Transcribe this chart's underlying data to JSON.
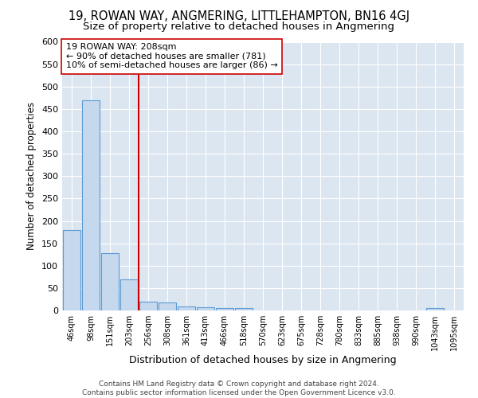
{
  "title": "19, ROWAN WAY, ANGMERING, LITTLEHAMPTON, BN16 4GJ",
  "subtitle": "Size of property relative to detached houses in Angmering",
  "xlabel": "Distribution of detached houses by size in Angmering",
  "ylabel": "Number of detached properties",
  "bar_categories": [
    "46sqm",
    "98sqm",
    "151sqm",
    "203sqm",
    "256sqm",
    "308sqm",
    "361sqm",
    "413sqm",
    "466sqm",
    "518sqm",
    "570sqm",
    "623sqm",
    "675sqm",
    "728sqm",
    "780sqm",
    "833sqm",
    "885sqm",
    "938sqm",
    "990sqm",
    "1043sqm",
    "1095sqm"
  ],
  "bar_values": [
    180,
    470,
    128,
    70,
    20,
    17,
    9,
    7,
    5,
    5,
    0,
    0,
    0,
    0,
    0,
    0,
    0,
    0,
    0,
    5,
    0
  ],
  "bar_color": "#c5d8ed",
  "bar_edge_color": "#5b9bd5",
  "vline_x": 3.5,
  "vline_color": "#cc0000",
  "annotation_text": "19 ROWAN WAY: 208sqm\n← 90% of detached houses are smaller (781)\n10% of semi-detached houses are larger (86) →",
  "annotation_box_color": "#ffffff",
  "annotation_box_edge": "#cc0000",
  "ylim": [
    0,
    600
  ],
  "yticks": [
    0,
    50,
    100,
    150,
    200,
    250,
    300,
    350,
    400,
    450,
    500,
    550,
    600
  ],
  "footer": "Contains HM Land Registry data © Crown copyright and database right 2024.\nContains public sector information licensed under the Open Government Licence v3.0.",
  "title_fontsize": 10.5,
  "subtitle_fontsize": 9.5,
  "ylabel_fontsize": 8.5,
  "xlabel_fontsize": 9,
  "footer_fontsize": 6.5,
  "bg_color": "#dce6f1",
  "grid_color": "#ffffff"
}
